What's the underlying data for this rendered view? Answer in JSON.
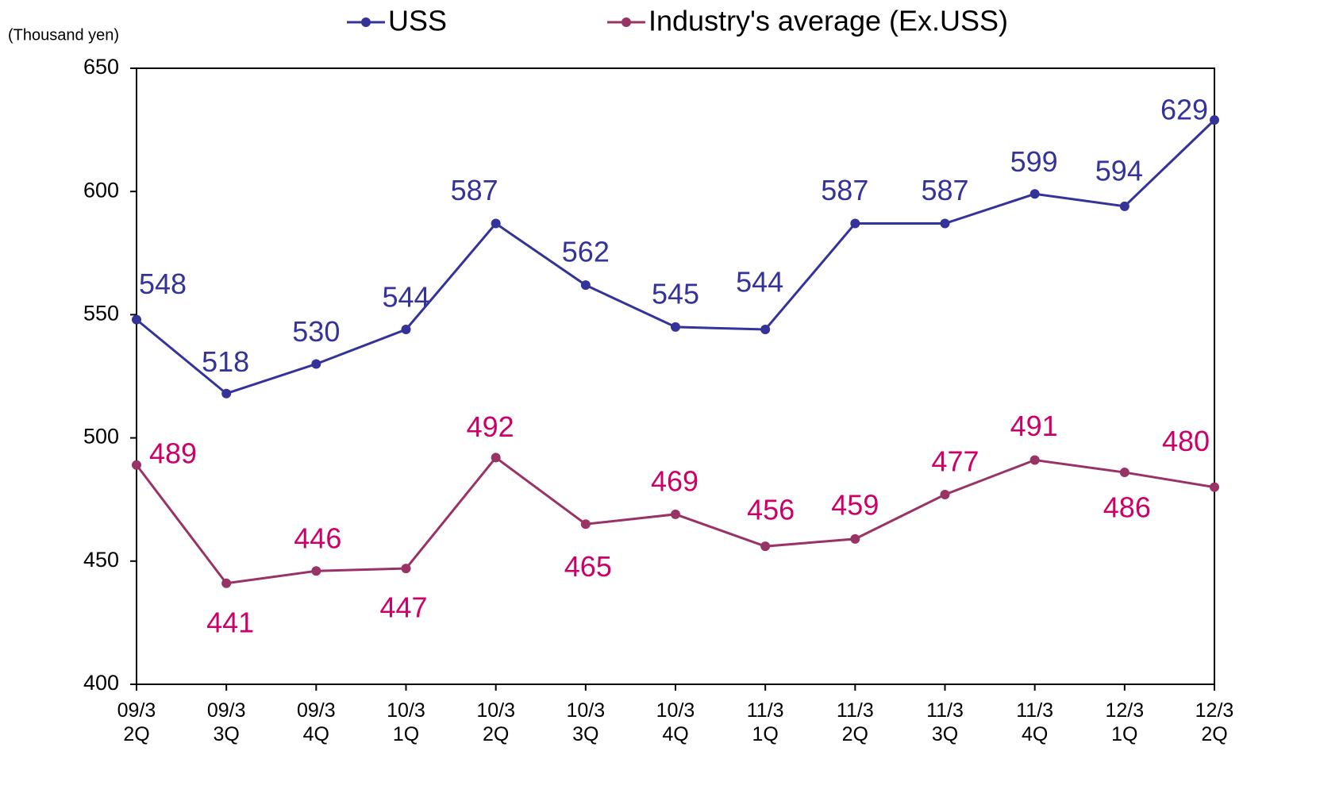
{
  "chart_data": {
    "type": "line",
    "y_axis_label": "(Thousand yen)",
    "categories": [
      "09/3 2Q",
      "09/3 3Q",
      "09/3 4Q",
      "10/3 1Q",
      "10/3 2Q",
      "10/3 3Q",
      "10/3 4Q",
      "11/3 1Q",
      "11/3 2Q",
      "11/3 3Q",
      "11/3 4Q",
      "12/3 1Q",
      "12/3 2Q"
    ],
    "series": [
      {
        "name": "USS",
        "color": "#333399",
        "label_color": "#333399",
        "values": [
          548,
          518,
          530,
          544,
          587,
          562,
          545,
          544,
          587,
          587,
          599,
          594,
          629
        ]
      },
      {
        "name": "Industry's average (Ex.USS)",
        "color": "#993366",
        "label_color": "#cc0066",
        "values": [
          489,
          441,
          446,
          447,
          492,
          465,
          469,
          456,
          459,
          477,
          491,
          486,
          480
        ]
      }
    ],
    "ylim": [
      400,
      650
    ],
    "yticks": [
      400,
      450,
      500,
      550,
      600,
      650
    ],
    "grid": false,
    "legend": "top"
  }
}
